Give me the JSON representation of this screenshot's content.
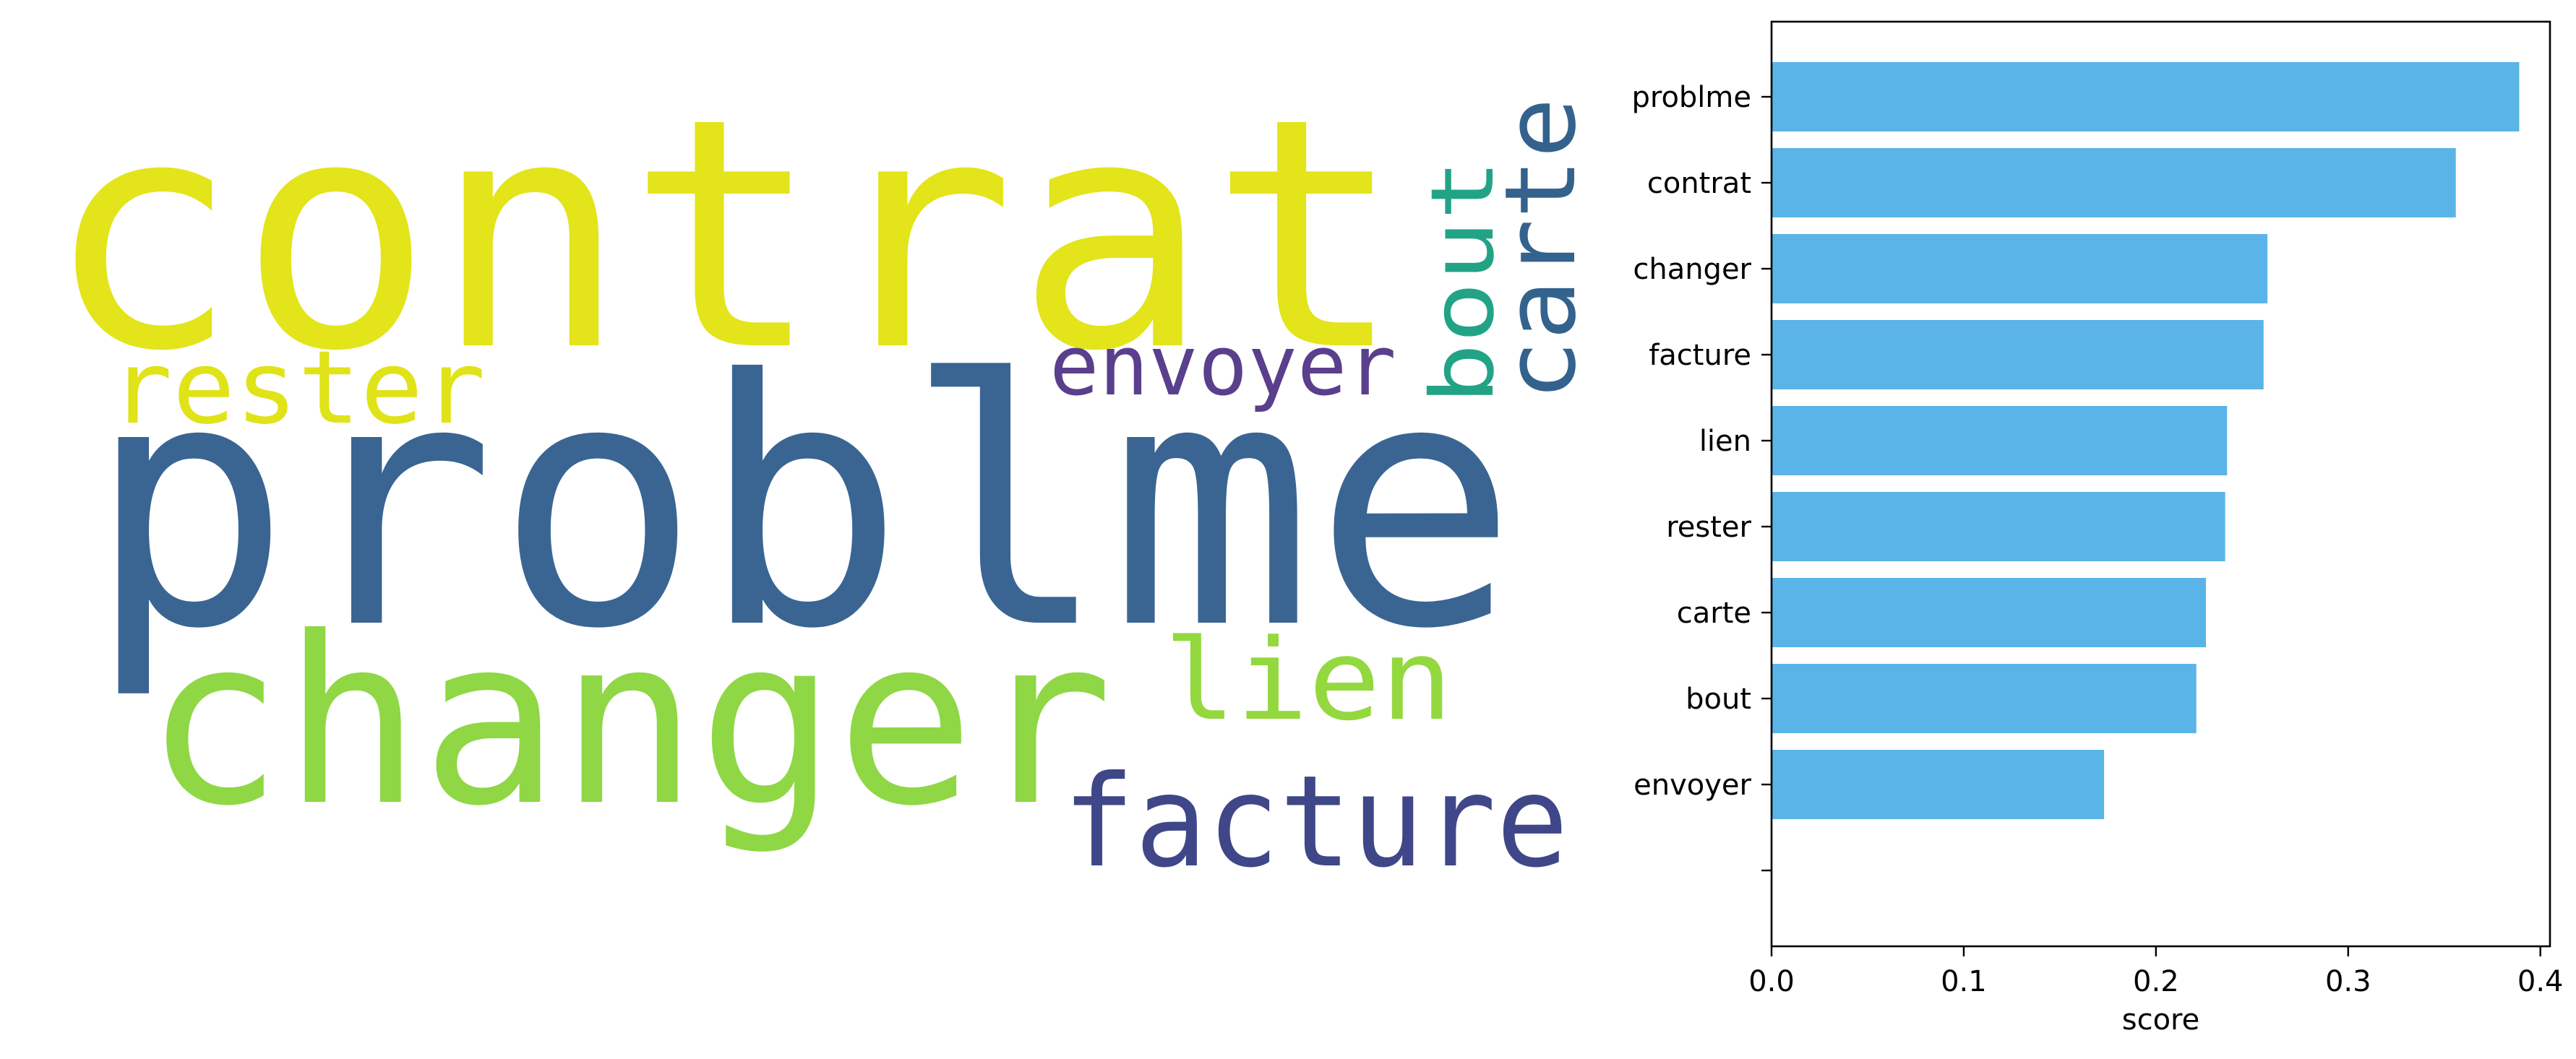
{
  "wordcloud": {
    "words": [
      {
        "text": "contrat",
        "color": "#e3e41a",
        "rotate": false
      },
      {
        "text": "problme",
        "color": "#3a6592",
        "rotate": false
      },
      {
        "text": "changer",
        "color": "#8fd745",
        "rotate": false
      },
      {
        "text": "facture",
        "color": "#3f4788",
        "rotate": false
      },
      {
        "text": "lien",
        "color": "#94d840",
        "rotate": false
      },
      {
        "text": "rester",
        "color": "#dfe318",
        "rotate": false
      },
      {
        "text": "envoyer",
        "color": "#5a3f8c",
        "rotate": false
      },
      {
        "text": "bout",
        "color": "#22a386",
        "rotate": true
      },
      {
        "text": "carte",
        "color": "#33638d",
        "rotate": true
      }
    ]
  },
  "chart_data": {
    "type": "bar",
    "orientation": "horizontal",
    "categories": [
      "problme",
      "contrat",
      "changer",
      "facture",
      "lien",
      "rester",
      "carte",
      "bout",
      "envoyer",
      ""
    ],
    "values": [
      0.389,
      0.356,
      0.258,
      0.256,
      0.237,
      0.236,
      0.226,
      0.221,
      0.173,
      0
    ],
    "xlabel": "score",
    "xlim": [
      0,
      0.405
    ],
    "xticks": [
      "0.0",
      "0.1",
      "0.2",
      "0.3",
      "0.4"
    ],
    "bar_color": "#5ab4e7",
    "grid": false
  }
}
